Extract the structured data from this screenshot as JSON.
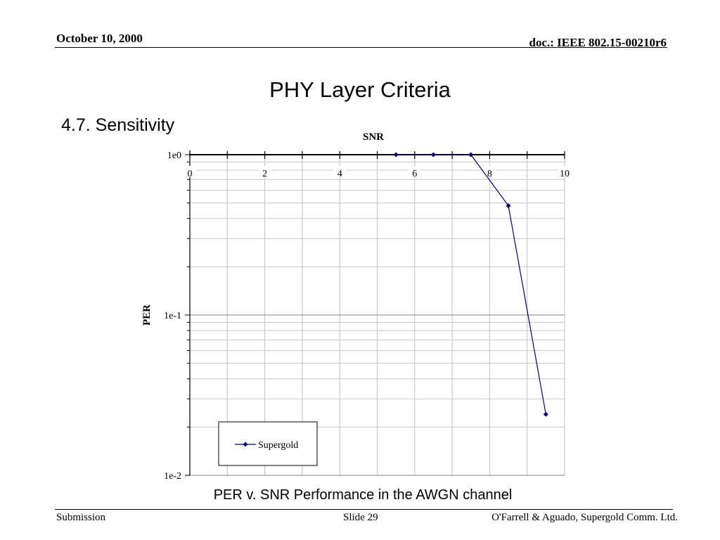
{
  "header": {
    "date": "October 10, 2000",
    "doc": "doc.: IEEE 802.15-00210r6"
  },
  "slide": {
    "title": "PHY Layer Criteria",
    "section": "4.7. Sensitivity",
    "caption": "PER v. SNR Performance in the AWGN channel"
  },
  "footer": {
    "left": "Submission",
    "center": "Slide 29",
    "right": "O'Farrell & Aguado, Supergold Comm. Ltd."
  },
  "chart_data": {
    "type": "line",
    "title": "",
    "xlabel": "SNR",
    "ylabel": "PER",
    "xlim": [
      0,
      10
    ],
    "ylim": [
      0.01,
      1
    ],
    "yscale": "log",
    "x_axis_position": "top",
    "xticks": [
      "0",
      "2",
      "4",
      "6",
      "8",
      "10"
    ],
    "yticks": [
      "1e0",
      "1e-1",
      "1e-2"
    ],
    "grid": true,
    "legend": "bottom-left",
    "series": [
      {
        "name": "Supergold",
        "color": "#000080",
        "marker": "diamond",
        "x": [
          5.5,
          6.5,
          7.5,
          8.5,
          9.5
        ],
        "y": [
          1.0,
          1.0,
          1.0,
          0.48,
          0.024
        ]
      }
    ]
  }
}
